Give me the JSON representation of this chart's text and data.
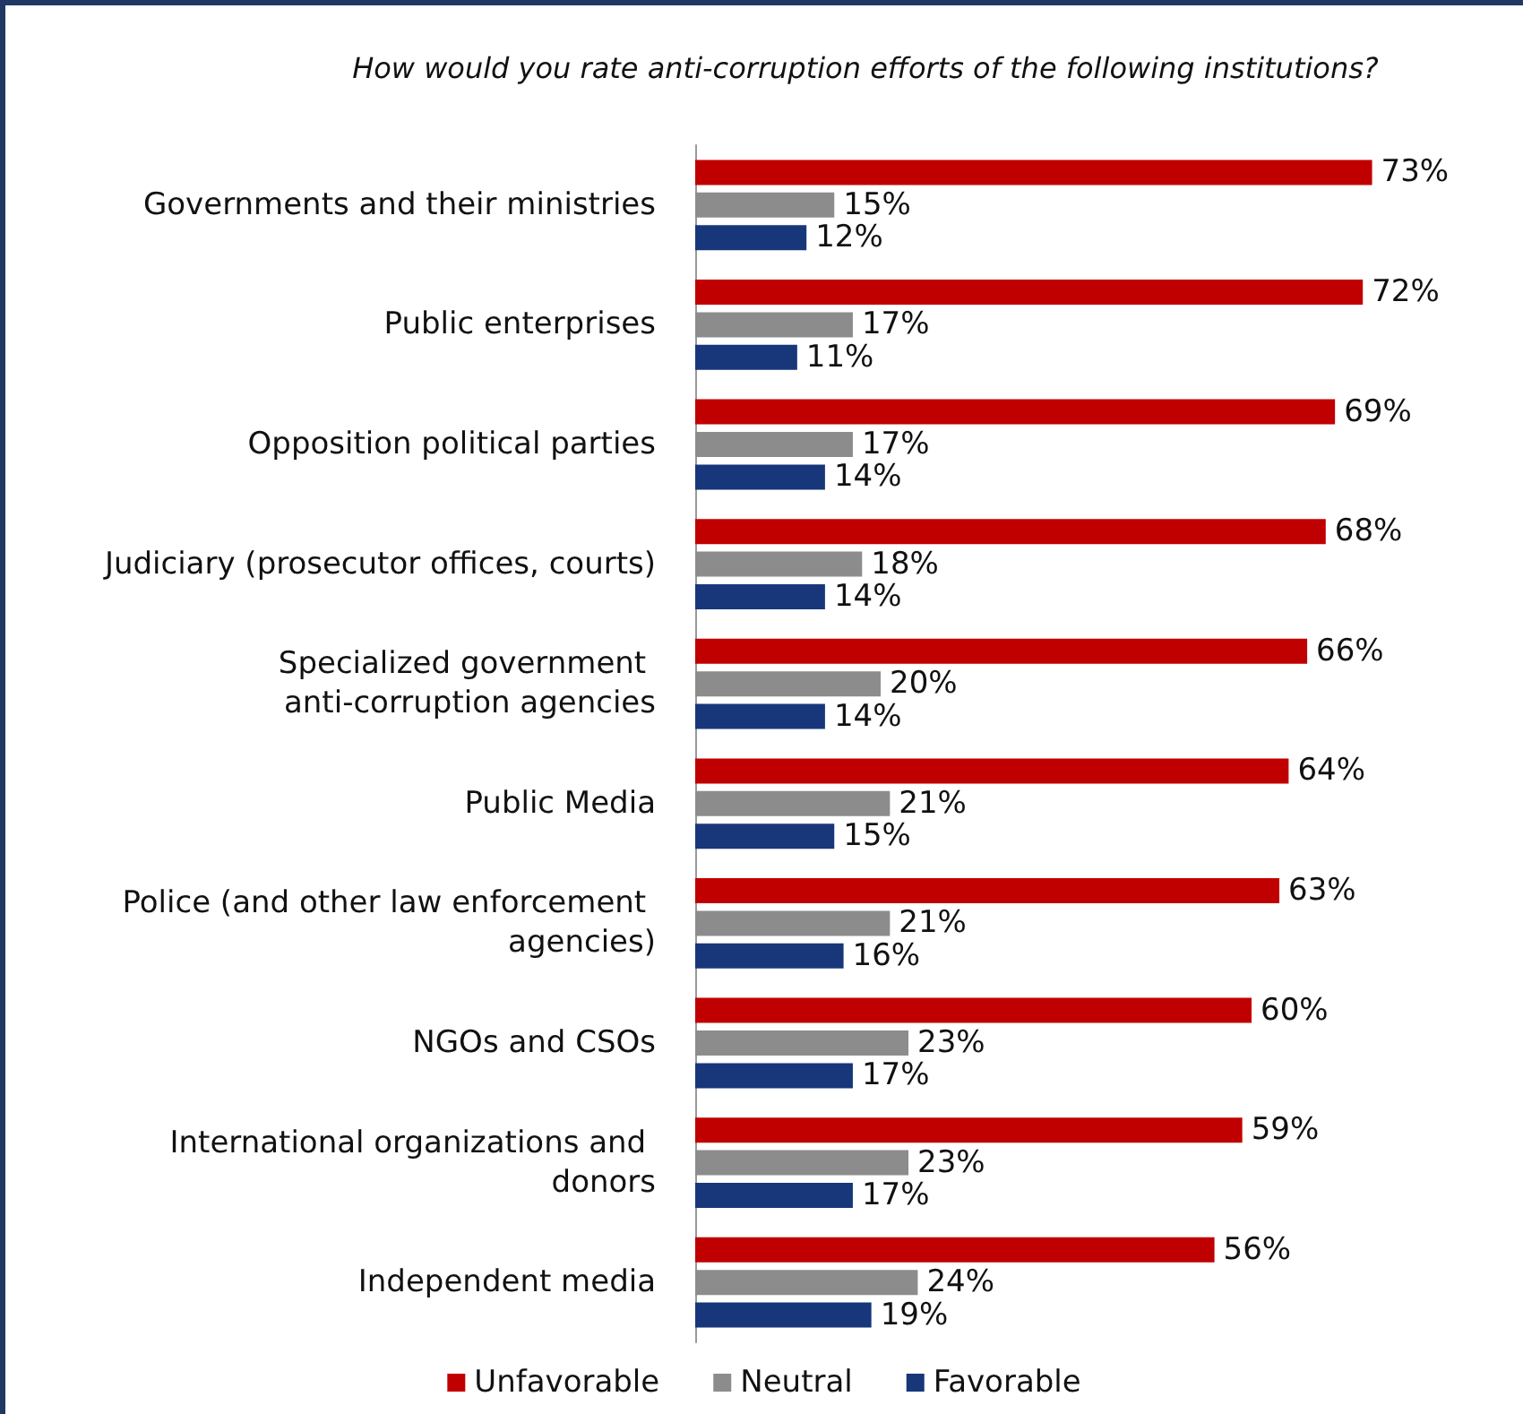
{
  "chart_data": {
    "type": "bar",
    "orientation": "horizontal",
    "title": "How would you rate anti-corruption efforts of the following institutions?",
    "categories": [
      "Governments and their ministries",
      "Public enterprises",
      "Opposition political parties",
      "Judiciary (prosecutor offices, courts)",
      "Specialized government anti-corruption agencies",
      "Public Media",
      "Police (and other law enforcement agencies)",
      "NGOs and CSOs",
      "International organizations and donors",
      "Independent media"
    ],
    "series": [
      {
        "name": "Unfavorable",
        "color": "#c00000",
        "values": [
          73,
          72,
          69,
          68,
          66,
          64,
          63,
          60,
          59,
          56
        ],
        "value_labels": [
          "73%",
          "72%",
          "69%",
          "68%",
          "66%",
          "64%",
          "63%",
          "60%",
          "59%",
          "56%"
        ]
      },
      {
        "name": "Neutral",
        "color": "#8c8c8c",
        "values": [
          15,
          17,
          17,
          18,
          20,
          21,
          21,
          23,
          23,
          24
        ],
        "value_labels": [
          "15%",
          "17%",
          "17%",
          "18%",
          "20%",
          "21%",
          "21%",
          "23%",
          "23%",
          "24%"
        ]
      },
      {
        "name": "Favorable",
        "color": "#17377a",
        "values": [
          12,
          11,
          14,
          14,
          14,
          15,
          16,
          17,
          17,
          19
        ],
        "value_labels": [
          "12%",
          "11%",
          "14%",
          "14%",
          "14%",
          "15%",
          "16%",
          "17%",
          "17%",
          "19%"
        ]
      }
    ],
    "tick_labels": "y",
    "grid": false,
    "legend": "bottom"
  }
}
